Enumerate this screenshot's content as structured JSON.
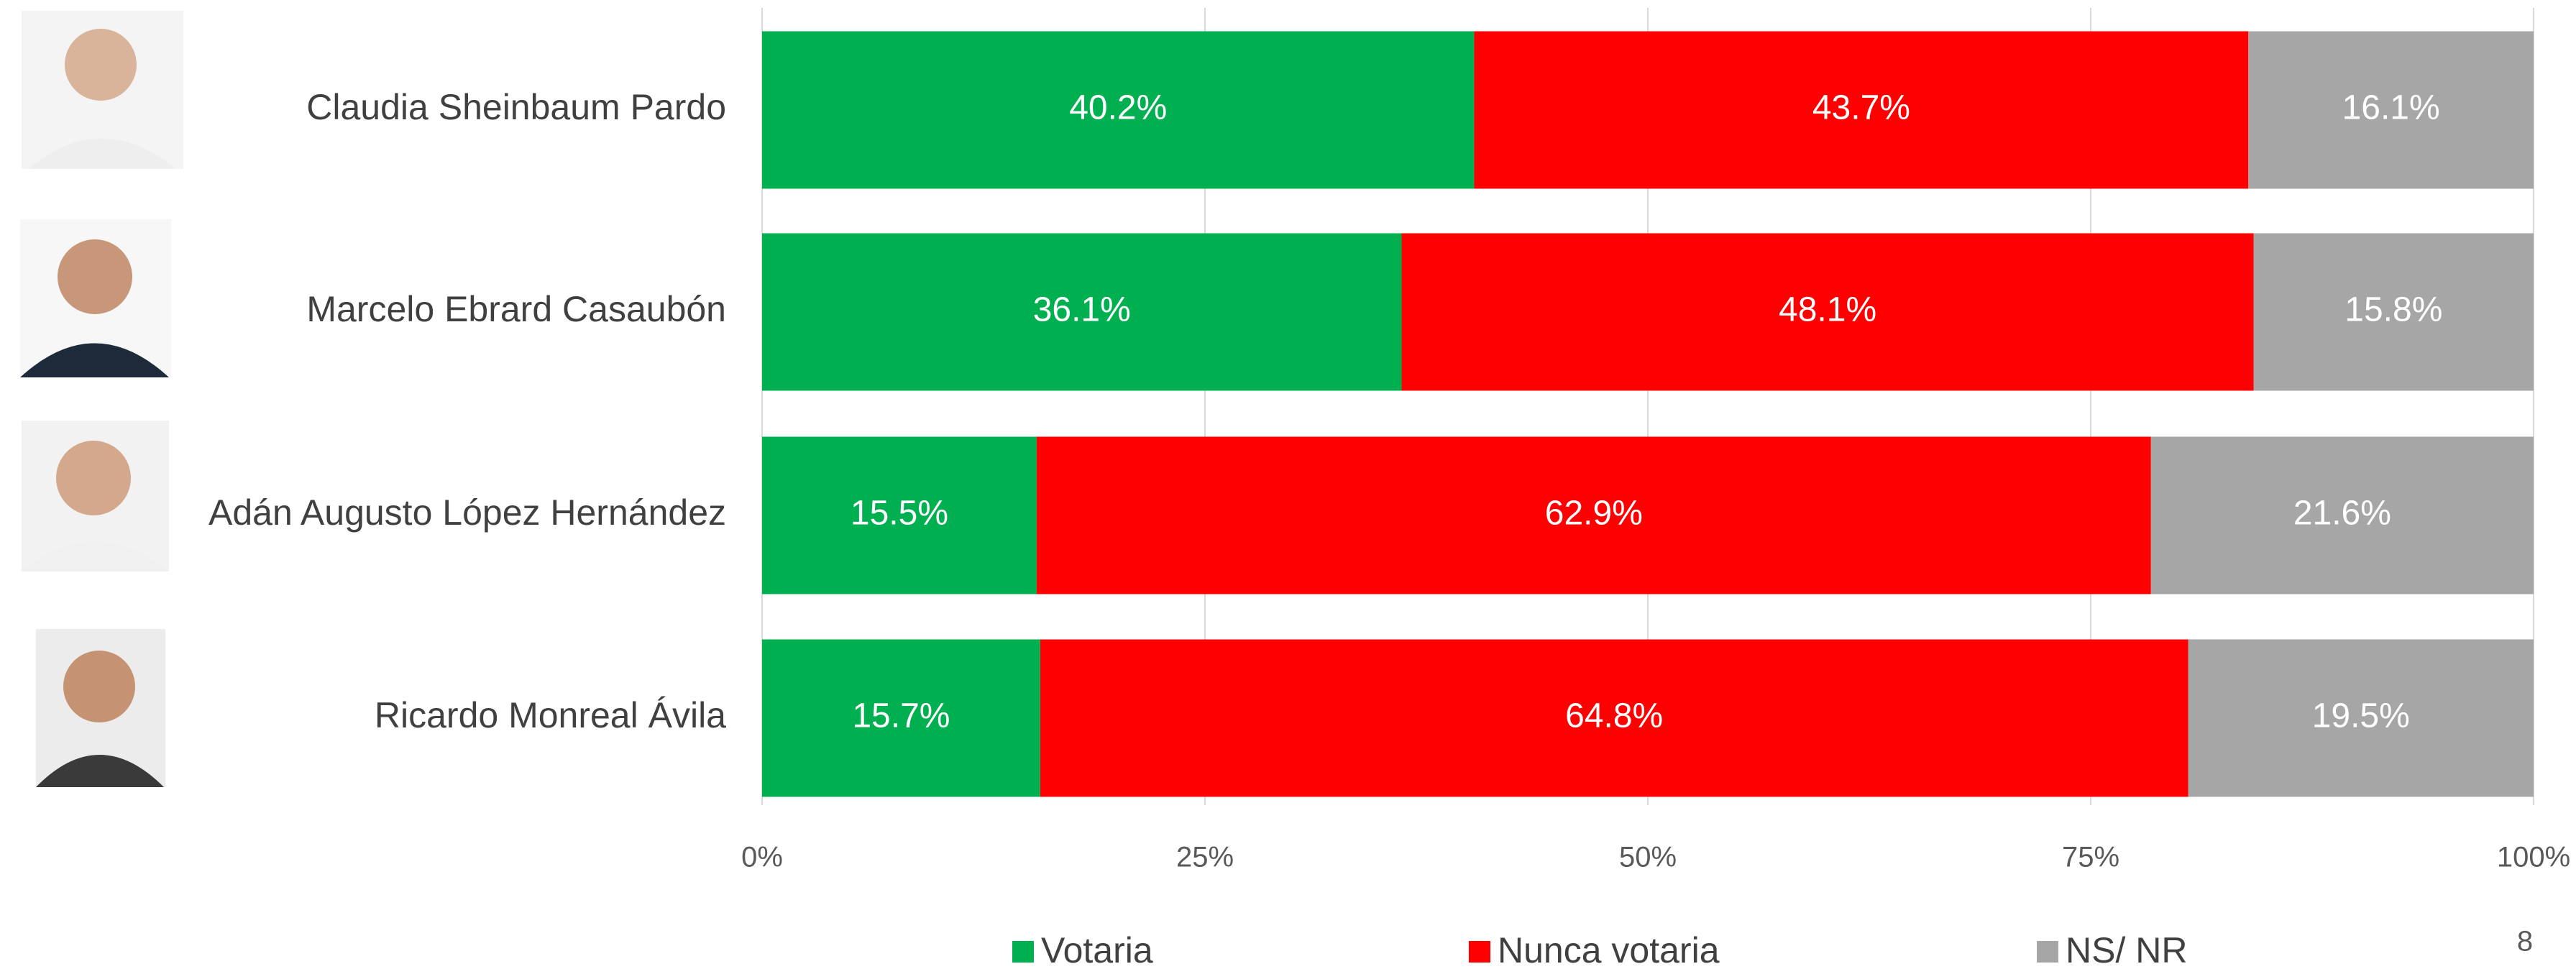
{
  "chart_data": {
    "type": "stacked-barh",
    "categories": [
      "Claudia Sheinbaum Pardo",
      "Marcelo Ebrard Casaubón",
      "Adán Augusto López Hernández",
      "Ricardo Monreal Ávila"
    ],
    "series": [
      {
        "name": "Votaria",
        "color": "#00b050",
        "values": [
          40.2,
          36.1,
          15.5,
          15.7
        ],
        "value_labels": [
          "40.2%",
          "36.1%",
          "15.5%",
          "15.7%"
        ]
      },
      {
        "name": "Nunca votaria",
        "color": "#ff0000",
        "values": [
          43.7,
          48.1,
          62.9,
          64.8
        ],
        "value_labels": [
          "43.7%",
          "48.1%",
          "62.9%",
          "64.8%"
        ]
      },
      {
        "name": "NS/ NR",
        "color": "#a6a6a6",
        "values": [
          16.1,
          15.8,
          21.6,
          19.5
        ],
        "value_labels": [
          "16.1%",
          "15.8%",
          "21.6%",
          "19.5%"
        ]
      }
    ],
    "xlim": [
      0,
      100
    ],
    "xticks": [
      {
        "value": 0,
        "label": "0%"
      },
      {
        "value": 25,
        "label": "25%"
      },
      {
        "value": 50,
        "label": "50%"
      },
      {
        "value": 75,
        "label": "75%"
      },
      {
        "value": 100,
        "label": "100%"
      }
    ],
    "grid": true,
    "legend": "bottom"
  },
  "page_number": "8"
}
